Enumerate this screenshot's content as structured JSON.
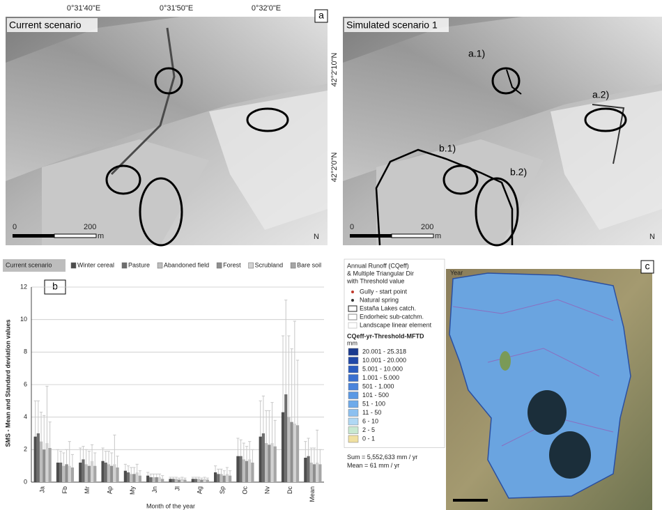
{
  "panel_a": {
    "label": "a",
    "left_title": "Current scenario",
    "right_title": "Simulated scenario 1",
    "lon_ticks": [
      "0°31'40\"E",
      "0°31'50\"E",
      "0°32'0\"E"
    ],
    "lat_ticks": [
      "42°2'10\"N",
      "42°2'0\"N"
    ],
    "scale": [
      "0",
      "200",
      "m"
    ],
    "north": "N",
    "annotations": [
      "a.1)",
      "a.2)",
      "b.1)",
      "b.2)"
    ]
  },
  "chart_data": {
    "type": "bar",
    "panel_label": "b",
    "scenario_label": "Current scenario",
    "y_label": "SMS - Mean and Standard deviation values",
    "x_label": "Month of the year",
    "categories": [
      "Ja",
      "Fb",
      "Mr",
      "Ap",
      "My",
      "Jn",
      "Jl",
      "Ag",
      "Sp",
      "Oc",
      "Nv",
      "Dc",
      "Mean"
    ],
    "ylim": [
      0,
      12
    ],
    "yticks": [
      0,
      2,
      4,
      6,
      8,
      10,
      12
    ],
    "grid": true,
    "error_color": "#c8c8c8",
    "series": [
      {
        "name": "Winter cereal",
        "color": "#4d4d4d",
        "values": [
          2.8,
          1.2,
          1.2,
          1.3,
          0.7,
          0.4,
          0.2,
          0.2,
          0.6,
          1.6,
          2.8,
          4.3,
          1.5
        ],
        "errors": [
          2.2,
          0.8,
          0.9,
          0.8,
          0.4,
          0.2,
          0.1,
          0.1,
          0.4,
          1.1,
          2.2,
          4.7,
          1.0
        ]
      },
      {
        "name": "Pasture",
        "color": "#6e6e6e",
        "values": [
          3.0,
          1.2,
          1.4,
          1.2,
          0.6,
          0.3,
          0.2,
          0.2,
          0.5,
          1.6,
          3.0,
          5.4,
          1.6
        ],
        "errors": [
          2.0,
          0.7,
          0.8,
          0.7,
          0.4,
          0.2,
          0.1,
          0.1,
          0.3,
          1.0,
          2.3,
          5.8,
          1.1
        ]
      },
      {
        "name": "Abandoned field",
        "color": "#bdbdbd",
        "values": [
          2.5,
          1.0,
          1.1,
          1.1,
          0.5,
          0.3,
          0.2,
          0.2,
          0.5,
          1.4,
          2.4,
          4.0,
          1.2
        ],
        "errors": [
          1.8,
          0.8,
          0.9,
          0.8,
          0.4,
          0.2,
          0.1,
          0.1,
          0.3,
          1.0,
          2.0,
          5.0,
          0.9
        ]
      },
      {
        "name": "Forest",
        "color": "#8f8f8f",
        "values": [
          2.0,
          1.1,
          1.0,
          1.0,
          0.5,
          0.3,
          0.15,
          0.15,
          0.4,
          1.3,
          2.3,
          3.7,
          1.1
        ],
        "errors": [
          2.1,
          0.9,
          0.9,
          0.8,
          0.4,
          0.2,
          0.1,
          0.1,
          0.3,
          0.9,
          2.1,
          4.5,
          1.0
        ]
      },
      {
        "name": "Scrubland",
        "color": "#d2d2d2",
        "values": [
          2.4,
          1.0,
          1.3,
          1.1,
          0.6,
          0.3,
          0.2,
          0.2,
          0.5,
          1.4,
          2.4,
          3.6,
          1.2
        ],
        "errors": [
          3.5,
          1.5,
          1.0,
          1.8,
          0.5,
          0.2,
          0.1,
          0.1,
          0.4,
          1.1,
          2.5,
          6.3,
          2.0
        ]
      },
      {
        "name": "Bare soil",
        "color": "#a6a6a6",
        "values": [
          2.1,
          0.9,
          1.0,
          0.9,
          0.4,
          0.2,
          0.15,
          0.15,
          0.4,
          1.2,
          2.2,
          3.5,
          1.1
        ],
        "errors": [
          1.6,
          0.8,
          0.8,
          0.7,
          0.3,
          0.2,
          0.1,
          0.1,
          0.3,
          0.8,
          1.6,
          4.0,
          0.9
        ]
      }
    ]
  },
  "panel_c": {
    "label": "c",
    "map_label": "Year",
    "legend_title": [
      "Annual Runoff (CQeff)",
      "& Multiple Triangular Dir",
      "with Threshold value"
    ],
    "symbols": [
      {
        "label": "Gully - start point",
        "color": "#c0392b",
        "shape": "dot"
      },
      {
        "label": "Natural spring",
        "color": "#333333",
        "shape": "dot"
      },
      {
        "label": "Estaña Lakes catch.",
        "color": "#222222",
        "shape": "box"
      },
      {
        "label": "Endorheic sub-catchm.",
        "color": "#888888",
        "shape": "box"
      },
      {
        "label": "Landscape linear element",
        "color": "#cccccc",
        "shape": "box"
      }
    ],
    "class_title": "CQeff-yr-Threshold-MFTD",
    "class_unit": "mm",
    "classes": [
      {
        "label": "20.001 - 25.318",
        "color": "#1a3a8f"
      },
      {
        "label": "10.001 - 20.000",
        "color": "#2048a8"
      },
      {
        "label": "5.001 - 10.000",
        "color": "#2a5cc0"
      },
      {
        "label": "1.001 - 5.000",
        "color": "#3a70d0"
      },
      {
        "label": "501 - 1.000",
        "color": "#4a84dc"
      },
      {
        "label": "101 - 500",
        "color": "#5a98e4"
      },
      {
        "label": "51 - 100",
        "color": "#6eaaea"
      },
      {
        "label": "11 - 50",
        "color": "#8cc0f0"
      },
      {
        "label": "6 - 10",
        "color": "#b0d8f4"
      },
      {
        "label": "2 - 5",
        "color": "#c8e8d0"
      },
      {
        "label": "0 - 1",
        "color": "#f0e0a0"
      }
    ],
    "sum": "Sum = 5,552,633 mm / yr",
    "mean": "Mean = 61 mm / yr"
  }
}
